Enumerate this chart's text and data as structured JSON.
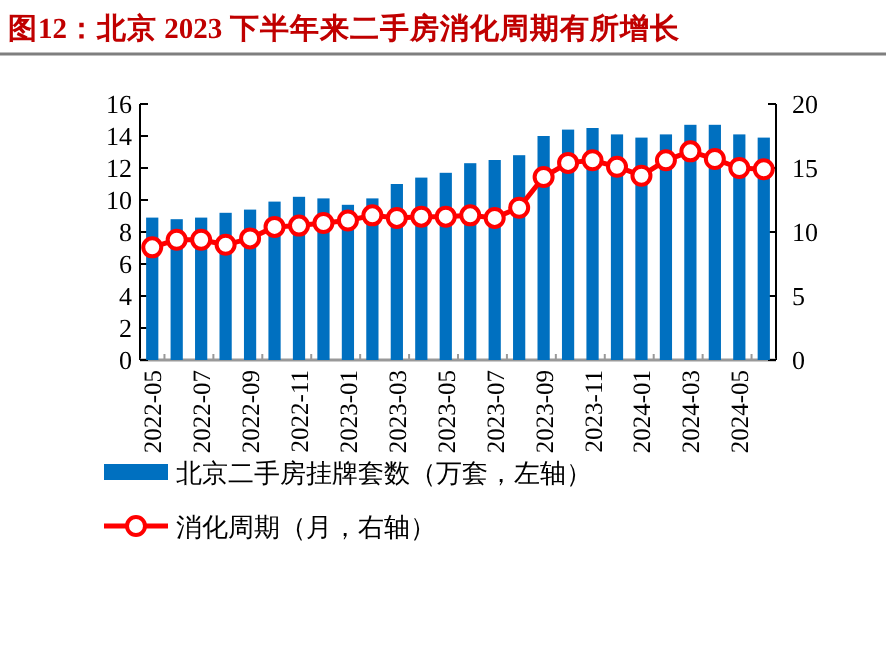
{
  "chart_data": {
    "type": "bar",
    "title": "图12：北京 2023 下半年来二手房消化周期有所增长",
    "categories": [
      "2022-05",
      null,
      "2022-07",
      null,
      "2022-09",
      null,
      "2022-11",
      null,
      "2023-01",
      null,
      "2023-03",
      null,
      "2023-05",
      null,
      "2023-07",
      null,
      "2023-09",
      null,
      "2023-11",
      null,
      "2024-01",
      null,
      "2024-03",
      null,
      "2024-05",
      null
    ],
    "series": [
      {
        "name": "北京二手房挂牌套数（万套，左轴）",
        "color": "#0070c0",
        "values": [
          8.9,
          8.8,
          8.9,
          9.2,
          9.4,
          9.9,
          10.2,
          10.1,
          9.7,
          10.1,
          11.0,
          11.4,
          11.7,
          12.3,
          12.5,
          12.8,
          14.0,
          14.4,
          14.5,
          14.1,
          13.9,
          14.1,
          14.7,
          14.7,
          14.1,
          13.9
        ]
      },
      {
        "name": "消化周期（月，右轴）",
        "type": "line",
        "axis": "y2",
        "color": "#ff0000",
        "values": [
          8.8,
          9.4,
          9.4,
          9.0,
          9.5,
          10.4,
          10.5,
          10.7,
          10.9,
          11.3,
          11.1,
          11.2,
          11.2,
          11.3,
          11.1,
          11.9,
          14.3,
          15.4,
          15.6,
          15.1,
          14.4,
          15.6,
          16.3,
          15.7,
          15.0,
          14.9
        ]
      }
    ],
    "ylim": [
      0,
      16
    ],
    "yticks": [
      0,
      2,
      4,
      6,
      8,
      10,
      12,
      14,
      16
    ],
    "y2lim": [
      0,
      20
    ],
    "y2ticks": [
      0,
      5,
      10,
      15,
      20
    ],
    "marker": "circle",
    "line_style": "solid",
    "legend": "bottom",
    "grid": false
  }
}
